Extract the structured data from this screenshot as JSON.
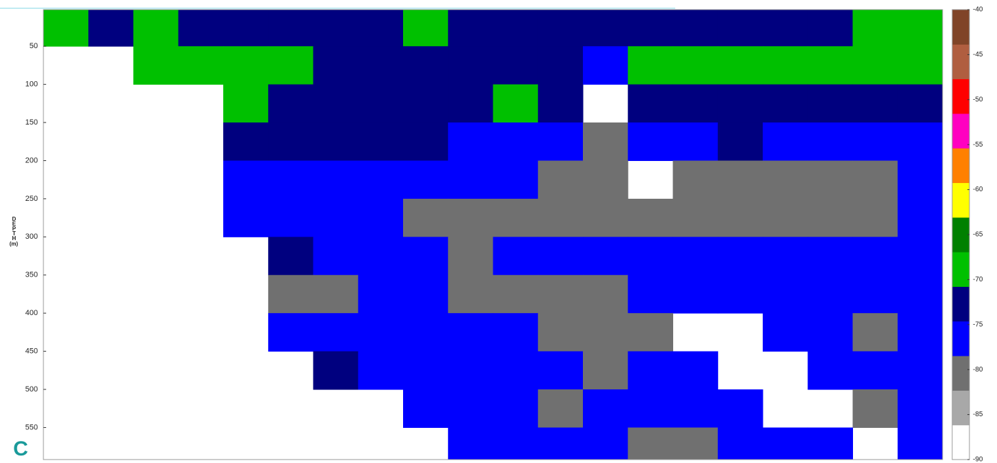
{
  "chart_data": {
    "type": "heatmap",
    "panel_label": "C",
    "ylabel": "DEPTH",
    "ylabel_unit": "(m)",
    "categories": [
      null,
      null,
      null,
      null,
      null,
      null,
      null,
      null,
      null,
      null,
      null,
      null,
      null,
      null,
      null,
      null,
      null,
      null,
      null,
      null
    ],
    "depth_bins": [
      2,
      50,
      100,
      150,
      200,
      250,
      300,
      350,
      400,
      450,
      500,
      550,
      592
    ],
    "ylim": [
      2,
      592
    ],
    "yticks": [
      50,
      100,
      150,
      200,
      250,
      300,
      350,
      400,
      450,
      500,
      550
    ],
    "z": [
      [
        -69,
        -73,
        -69,
        -73,
        -73,
        -73,
        -73,
        -73,
        -69,
        -73,
        -73,
        -73,
        -73,
        -73,
        -73,
        -73,
        -73,
        -73,
        -69,
        -69
      ],
      [
        null,
        null,
        -69,
        -69,
        -69,
        -69,
        -73,
        -73,
        -73,
        -73,
        -73,
        -73,
        -76,
        -69,
        -69,
        -69,
        -69,
        -69,
        -69,
        -69
      ],
      [
        null,
        null,
        null,
        null,
        -69,
        -73,
        -73,
        -73,
        -73,
        -73,
        -69,
        -73,
        null,
        -73,
        -73,
        -73,
        -73,
        -73,
        -73,
        -73
      ],
      [
        null,
        null,
        null,
        null,
        -73,
        -73,
        -73,
        -73,
        -73,
        -76,
        -76,
        -76,
        -80,
        -76,
        -76,
        -73,
        -76,
        -76,
        -76,
        -76
      ],
      [
        null,
        null,
        null,
        null,
        -76,
        -76,
        -76,
        -76,
        -76,
        -76,
        -76,
        -80,
        -80,
        null,
        -80,
        -80,
        -80,
        -80,
        -80,
        -76
      ],
      [
        null,
        null,
        null,
        null,
        -76,
        -76,
        -76,
        -76,
        -80,
        -80,
        -80,
        -80,
        -80,
        -80,
        -80,
        -80,
        -80,
        -80,
        -80,
        -76
      ],
      [
        null,
        null,
        null,
        null,
        null,
        -73,
        -76,
        -76,
        -76,
        -80,
        -76,
        -76,
        -76,
        -76,
        -76,
        -76,
        -76,
        -76,
        -76,
        -76
      ],
      [
        null,
        null,
        null,
        null,
        null,
        -80,
        -80,
        -76,
        -76,
        -80,
        -80,
        -80,
        -80,
        -76,
        -76,
        -76,
        -76,
        -76,
        -76,
        -76
      ],
      [
        null,
        null,
        null,
        null,
        null,
        -76,
        -76,
        -76,
        -76,
        -76,
        -76,
        -80,
        -80,
        -80,
        null,
        null,
        -76,
        -76,
        -80,
        -76
      ],
      [
        null,
        null,
        null,
        null,
        null,
        null,
        -73,
        -76,
        -76,
        -76,
        -76,
        -76,
        -80,
        -76,
        -76,
        null,
        null,
        -76,
        -76,
        -76
      ],
      [
        null,
        null,
        null,
        null,
        null,
        null,
        null,
        null,
        -76,
        -76,
        -76,
        -80,
        -76,
        -76,
        -76,
        -76,
        null,
        null,
        -80,
        -76
      ],
      [
        null,
        null,
        null,
        null,
        null,
        null,
        null,
        null,
        null,
        -76,
        -76,
        -76,
        -76,
        -80,
        -80,
        -76,
        -76,
        -76,
        null,
        -76
      ]
    ],
    "colorbar": {
      "lim": [
        -90,
        -40
      ],
      "ticks": [
        -90,
        -85,
        -80,
        -75,
        -70,
        -65,
        -60,
        -55,
        -50,
        -45,
        -40
      ],
      "colors": [
        "#ffffff",
        "#a8a8a8",
        "#707070",
        "#0000ff",
        "#00007f",
        "#00c000",
        "#008000",
        "#ffff00",
        "#ff8000",
        "#ff00c0",
        "#ff0000",
        "#b05e40",
        "#804428"
      ]
    }
  }
}
